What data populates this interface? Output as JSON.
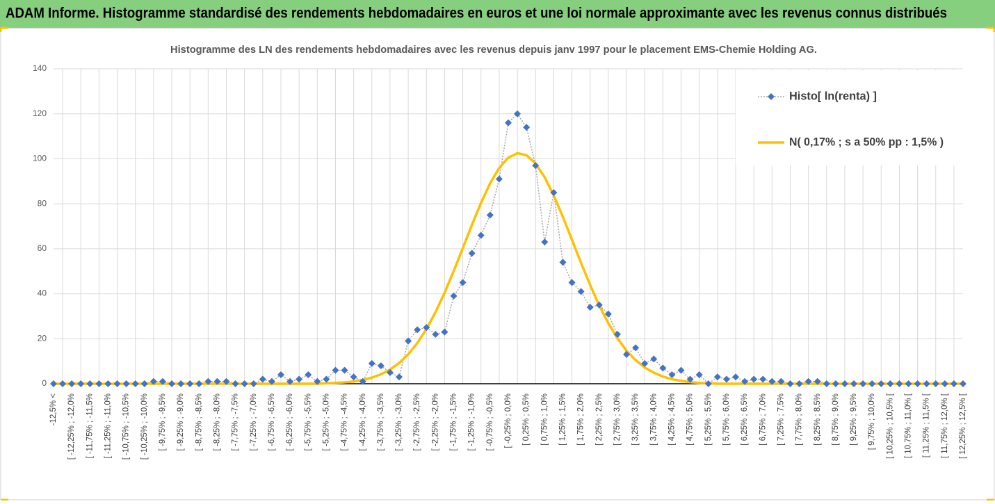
{
  "header": {
    "title": "ADAM Informe. Histogramme standardisé des rendements hebdomadaires en euros et une loi normale approximante avec les revenus connus distribués"
  },
  "chart_data": {
    "type": "line",
    "title": "Histogramme  des LN des rendements hebdomadaires avec les revenus depuis janv 1997 pour le placement EMS-Chemie Holding AG.",
    "categories": [
      "-12,5% <",
      null,
      "[ -12,25% ; -12,0%",
      null,
      "[ -11,75% ; -11,5%",
      null,
      "[ -11,25% ; -11,0%",
      null,
      "[ -10,75% ; -10,5%",
      null,
      "[ -10,25% ; -10,0%",
      null,
      "[ -9,75% ; -9,5%",
      null,
      "[ -9,25% ; -9,0%",
      null,
      "[ -8,75% ; -8,5%",
      null,
      "[ -8,25% ; -8,0%",
      null,
      "[ -7,75% ; -7,5%",
      null,
      "[ -7,25% ; -7,0%",
      null,
      "[ -6,75% ; -6,5%",
      null,
      "[ -6,25% ; -6,0%",
      null,
      "[ -5,75% ; -5,5%",
      null,
      "[ -5,25% ; -5,0%",
      null,
      "[ -4,75% ; -4,5%",
      null,
      "[ -4,25% ; -4,0%",
      null,
      "[ -3,75% ; -3,5%",
      null,
      "[ -3,25% ; -3,0%",
      null,
      "[ -2,75% ; -2,5%",
      null,
      "[ -2,25% ; -2,0%",
      null,
      "[ -1,75% ; -1,5%",
      null,
      "[ -1,25% ; -1,0%",
      null,
      "[ -0,75% ; -0,5%",
      null,
      "[ -0,25% ; 0,0%",
      null,
      "[ 0,25% ; 0,5%",
      null,
      "[ 0,75% ; 1,0%",
      null,
      "[ 1,25% ; 1,5%",
      null,
      "[ 1,75% ; 2,0%",
      null,
      "[ 2,25% ; 2,5%",
      null,
      "[ 2,75% ; 3,0%",
      null,
      "[ 3,25% ; 3,5%",
      null,
      "[ 3,75% ; 4,0%",
      null,
      "[ 4,25% ; 4,5%",
      null,
      "[ 4,75% ; 5,0%",
      null,
      "[ 5,25% ; 5,5%",
      null,
      "[ 5,75% ; 6,0%",
      null,
      "[ 6,25% ; 6,5%",
      null,
      "[ 6,75% ; 7,0%",
      null,
      "[ 7,25% ; 7,5%",
      null,
      "[ 7,75% ; 8,0%",
      null,
      "[ 8,25% ; 8,5%",
      null,
      "[ 8,75% ; 9,0%",
      null,
      "[ 9,25% ; 9,5%",
      null,
      "[ 9,75% ; 10,0%",
      null,
      "[ 10,25% ; 10,5% [",
      null,
      "[ 10,75% ; 11,0% [",
      null,
      "[ 11,25% ; 11,5% [",
      null,
      "[ 11,75% ; 12,0% [",
      null,
      "[ 12,25% ; 12,5% ["
    ],
    "series": [
      {
        "name": "Histo[ ln(renta) ]",
        "color": "#4472c4",
        "values": [
          0,
          0,
          0,
          0,
          0,
          0,
          0,
          0,
          0,
          0,
          0,
          1,
          1,
          0,
          0,
          0,
          0,
          1,
          1,
          1,
          0,
          0,
          0,
          2,
          1,
          4,
          1,
          2,
          4,
          1,
          2,
          6,
          6,
          3,
          1,
          9,
          8,
          5,
          3,
          19,
          24,
          25,
          22,
          23,
          39,
          45,
          58,
          66,
          75,
          91,
          116,
          120,
          114,
          97,
          63,
          85,
          54,
          45,
          41,
          34,
          35,
          31,
          22,
          13,
          16,
          9,
          11,
          7,
          4,
          6,
          2,
          4,
          0,
          3,
          2,
          3,
          1,
          2,
          2,
          1,
          1,
          0,
          0,
          1,
          1,
          0,
          0,
          0,
          0,
          0,
          0,
          0,
          0,
          0,
          0,
          0,
          0,
          0,
          0,
          0,
          0
        ]
      },
      {
        "name": "N( 0,17% ; s a 50% pp : 1,5% )",
        "color": "#ffc000",
        "values": [
          0,
          0,
          0,
          0,
          0,
          0,
          0,
          0,
          0,
          0,
          0,
          0,
          0,
          0,
          0,
          0,
          0,
          0,
          0,
          0,
          0,
          0,
          0,
          0,
          0,
          0,
          0,
          0,
          0,
          0,
          0.2,
          0.4,
          0.6,
          1.0,
          1.7,
          2.7,
          4.2,
          6.3,
          9.2,
          13.1,
          18.1,
          24.3,
          31.8,
          40.5,
          50.1,
          60.3,
          70.6,
          80.4,
          89.1,
          95.9,
          100.5,
          102.5,
          101.6,
          97.9,
          91.8,
          83.7,
          74.2,
          64.0,
          53.7,
          43.9,
          34.8,
          26.9,
          20.2,
          14.7,
          10.5,
          7.2,
          4.9,
          3.2,
          2.0,
          1.3,
          0.7,
          0.4,
          0.2,
          0,
          0,
          0,
          0,
          0,
          0,
          0,
          0,
          0,
          0,
          0,
          0,
          0,
          0,
          0,
          0,
          0,
          0,
          0,
          0,
          0,
          0,
          0,
          0,
          0,
          0,
          0,
          0
        ]
      }
    ],
    "ylim": [
      0,
      140
    ],
    "yticks": [
      0,
      20,
      40,
      60,
      80,
      100,
      120,
      140
    ],
    "grid": true,
    "legend": "top-right"
  }
}
